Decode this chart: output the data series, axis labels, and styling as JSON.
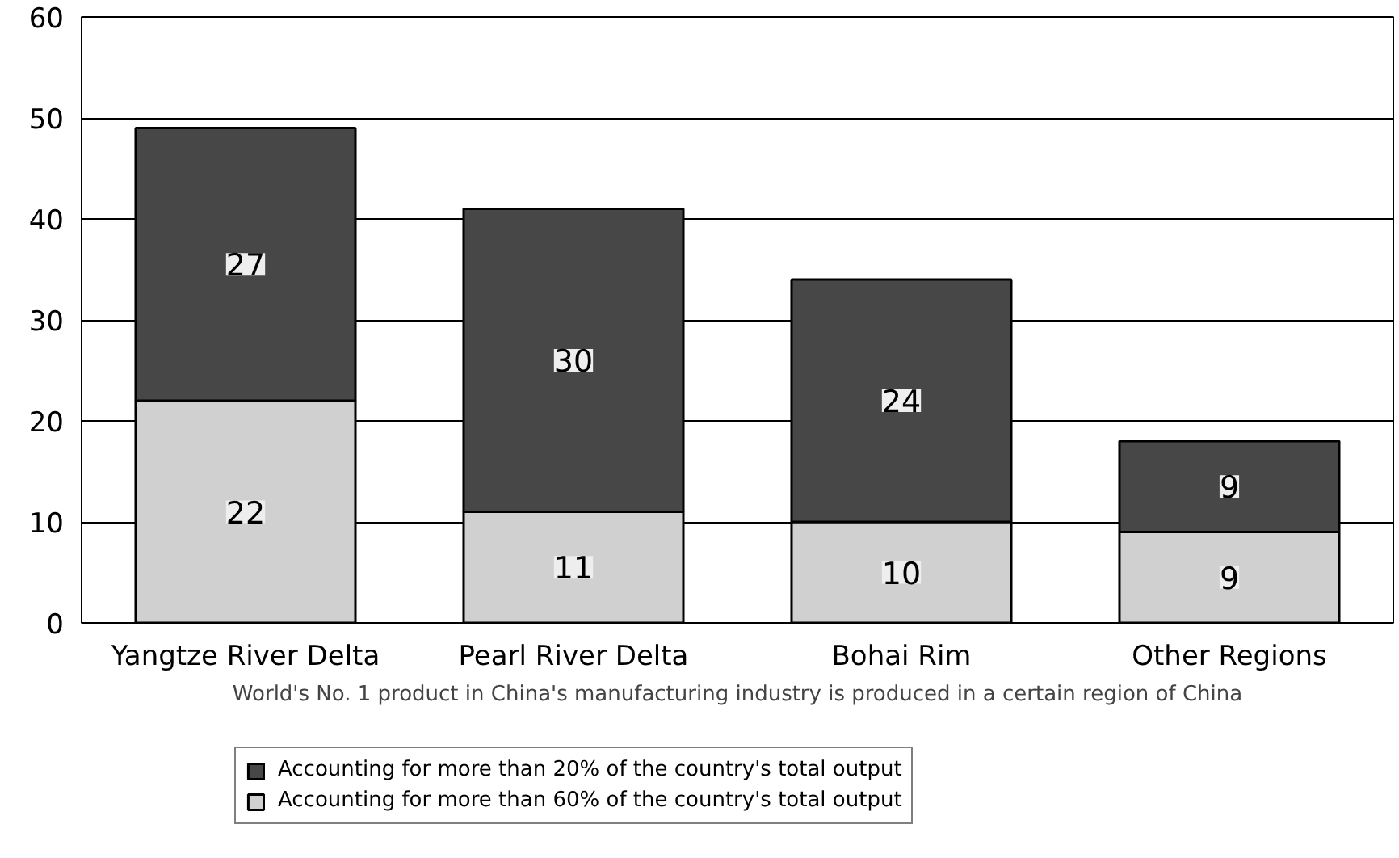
{
  "chart_data": {
    "type": "bar",
    "stacked": true,
    "categories": [
      "Yangtze River Delta",
      "Pearl River Delta",
      "Bohai Rim",
      "Other Regions"
    ],
    "series": [
      {
        "name": "Accounting for more than 60% of the country's total output",
        "color": "#d0d0d0",
        "values": [
          22,
          11,
          10,
          9
        ]
      },
      {
        "name": "Accounting for more than 20% of the country's total output",
        "color": "#474747",
        "values": [
          27,
          30,
          24,
          9
        ]
      }
    ],
    "ylim": [
      0,
      60
    ],
    "yticks": [
      0,
      10,
      20,
      30,
      40,
      50,
      60
    ],
    "grid": "y",
    "data_labels": true,
    "legend": "bottom",
    "annotations": [
      "World's No. 1 product in China's manufacturing industry is produced in a certain region of China"
    ]
  }
}
